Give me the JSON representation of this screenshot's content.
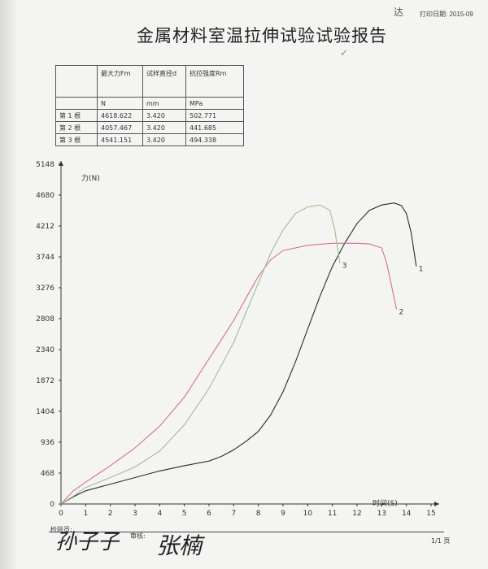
{
  "header": {
    "print_date": "打印日期: 2015-09",
    "stamp": "达",
    "title": "金属材料室温拉伸试验试验报告",
    "tick_mark": "✓"
  },
  "results_table": {
    "headers": [
      "",
      "最大力Fm",
      "试样直径d",
      "抗拉强度Rm"
    ],
    "units": [
      "",
      "N",
      "mm",
      "MPa"
    ],
    "rows": [
      [
        "第 1 根",
        "4618.622",
        "3.420",
        "502.771"
      ],
      [
        "第 2 根",
        "4057.467",
        "3.420",
        "441.685"
      ],
      [
        "第 3 根",
        "4541.151",
        "3.420",
        "494.338"
      ]
    ]
  },
  "chart_data": {
    "type": "line",
    "ylabel": "力(N)",
    "xlabel": "时间(S)",
    "yticks": [
      0,
      468,
      936,
      1404,
      1872,
      2340,
      2808,
      3276,
      3744,
      4212,
      4680,
      5148
    ],
    "xticks": [
      0,
      1,
      2,
      3,
      4,
      5,
      6,
      7,
      8,
      9,
      10,
      11,
      12,
      13,
      14,
      15
    ],
    "xlim": [
      0,
      15
    ],
    "ylim": [
      0,
      5148
    ],
    "grid": false,
    "series": [
      {
        "name": "1",
        "color": "#2a2a2a",
        "x": [
          0,
          0.5,
          1,
          2,
          3,
          4,
          5,
          6,
          6.5,
          7,
          7.5,
          8,
          8.5,
          9,
          9.5,
          10,
          10.5,
          11,
          11.5,
          12,
          12.5,
          13,
          13.5,
          13.8,
          14,
          14.2,
          14.4
        ],
        "y": [
          0,
          110,
          200,
          300,
          400,
          500,
          580,
          650,
          720,
          820,
          950,
          1100,
          1350,
          1700,
          2150,
          2650,
          3150,
          3600,
          3950,
          4250,
          4450,
          4530,
          4560,
          4520,
          4400,
          4100,
          3600
        ]
      },
      {
        "name": "2",
        "color": "#d4747e",
        "x": [
          0,
          0.5,
          1,
          2,
          3,
          4,
          5,
          6,
          7,
          7.5,
          8,
          8.5,
          9,
          10,
          11,
          12,
          12.5,
          13,
          13.2,
          13.4,
          13.6
        ],
        "y": [
          0,
          200,
          330,
          580,
          850,
          1180,
          1620,
          2200,
          2780,
          3120,
          3450,
          3700,
          3840,
          3920,
          3950,
          3950,
          3940,
          3880,
          3650,
          3300,
          2950
        ]
      },
      {
        "name": "3",
        "color": "#9fbf92",
        "x": [
          0,
          0.5,
          1,
          2,
          3,
          4,
          5,
          6,
          7,
          7.5,
          8,
          8.5,
          9,
          9.5,
          10,
          10.5,
          10.9,
          11.1,
          11.2,
          11.3
        ],
        "y": [
          0,
          120,
          250,
          400,
          560,
          800,
          1200,
          1750,
          2450,
          2900,
          3350,
          3800,
          4150,
          4400,
          4500,
          4530,
          4450,
          4150,
          3900,
          3650
        ]
      }
    ]
  },
  "footer": {
    "tester_label": "检验员:",
    "reviewer_label": "审核:",
    "page": "1/1 页",
    "tester_signature": "孙子子",
    "reviewer_signature": "张楠"
  }
}
